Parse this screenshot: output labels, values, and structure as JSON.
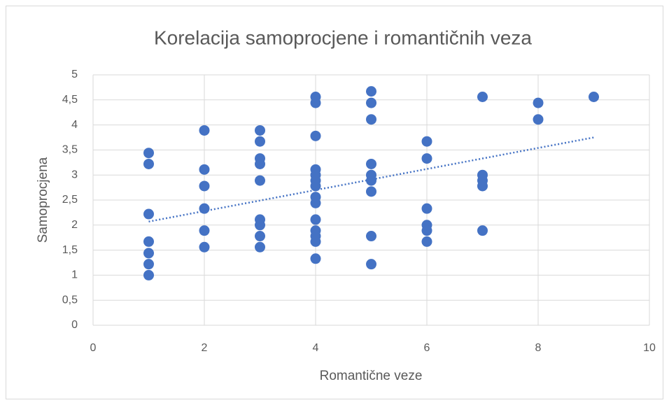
{
  "chart_data": {
    "type": "scatter",
    "title": "Korelacija samoprocjene i romantičnih veza",
    "xlabel": "Romantične veze",
    "ylabel": "Samoprocjena",
    "series": [
      {
        "color": "#4472c4",
        "x": [
          1,
          1,
          1,
          1,
          1,
          1,
          1,
          2,
          2,
          2,
          2,
          2,
          2,
          3,
          3,
          3,
          3,
          3,
          3,
          3,
          3,
          3,
          4,
          4,
          4,
          4,
          4,
          4,
          4,
          4,
          4,
          4,
          4,
          4,
          4,
          4,
          5,
          5,
          5,
          5,
          5,
          5,
          5,
          5,
          5,
          6,
          6,
          6,
          6,
          6,
          6,
          7,
          7,
          7,
          7,
          7,
          8,
          8,
          9
        ],
        "values": [
          3.44,
          3.22,
          2.22,
          1.67,
          1.44,
          1.22,
          1.0,
          3.89,
          3.11,
          2.78,
          2.33,
          1.89,
          1.56,
          3.89,
          3.67,
          3.33,
          3.22,
          2.89,
          2.11,
          2.0,
          1.78,
          1.56,
          4.56,
          4.44,
          3.78,
          3.11,
          3.0,
          2.89,
          2.78,
          2.56,
          2.44,
          2.11,
          1.89,
          1.78,
          1.67,
          1.33,
          4.67,
          4.44,
          4.11,
          3.22,
          3.0,
          2.89,
          2.67,
          1.78,
          1.22,
          3.67,
          3.33,
          2.33,
          2.0,
          1.89,
          1.67,
          4.56,
          3.0,
          2.89,
          2.78,
          1.89,
          4.44,
          4.11,
          4.56
        ]
      }
    ],
    "trendline": {
      "x": [
        1,
        9
      ],
      "values": [
        2.07,
        3.75
      ],
      "color": "#4472c4",
      "style": "dotted"
    },
    "xlim": [
      0,
      10
    ],
    "xticks": [
      0,
      2,
      4,
      6,
      8,
      10
    ],
    "ylim": [
      0,
      5
    ],
    "yticks": [
      0,
      {
        "value": 0.5,
        "label": "0,5"
      },
      1,
      {
        "value": 1.5,
        "label": "1,5"
      },
      2,
      {
        "value": 2.5,
        "label": "2,5"
      },
      3,
      {
        "value": 3.5,
        "label": "3,5"
      },
      4,
      {
        "value": 4.5,
        "label": "4,5"
      },
      5
    ],
    "grid": true
  }
}
